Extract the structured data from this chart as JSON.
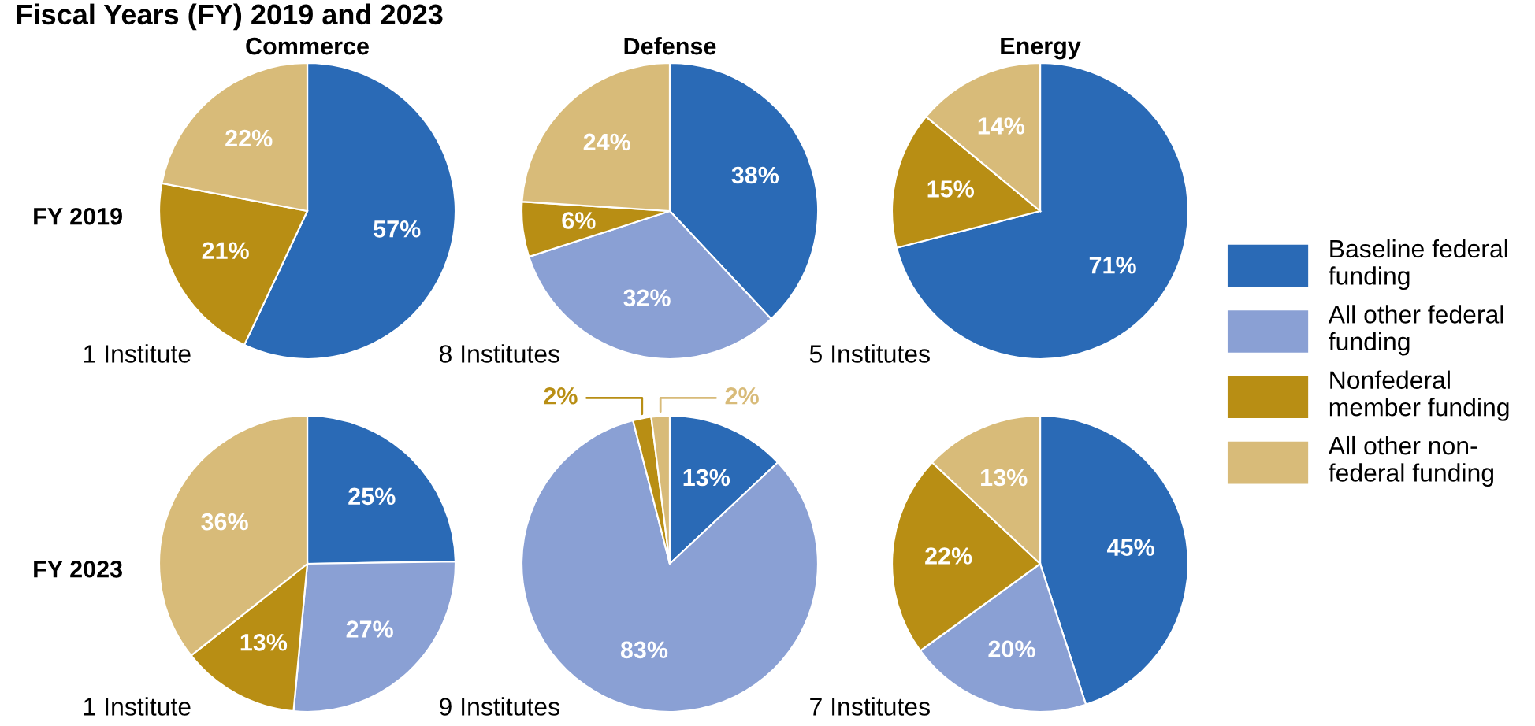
{
  "chart_data": [
    {
      "type": "pie",
      "title": "Commerce",
      "categories": [
        "Baseline federal\nfunding",
        "All other federal\nfunding",
        "Nonfederal\nmember funding",
        "All other non-\nfederal funding"
      ],
      "values": [
        57,
        0,
        21,
        22
      ],
      "colors": [
        "#2a6ab6",
        "#8aa0d4",
        "#b88e14",
        "#d8bb79"
      ],
      "value_labels": [
        "57%",
        null,
        "21%",
        "22%"
      ],
      "annotations": [
        "Fiscal Years (FY) 2019 and 2023",
        "FY 2019",
        "1 Institute"
      ],
      "legend": "right"
    },
    {
      "type": "pie",
      "title": "Defense",
      "values": [
        38,
        32,
        6,
        24
      ],
      "colors": [
        "#2a6ab6",
        "#8aa0d4",
        "#b88e14",
        "#d8bb79"
      ],
      "value_labels": [
        "38%",
        "32%",
        "6%",
        "24%"
      ],
      "annotations": [
        "8 Institutes"
      ]
    },
    {
      "type": "pie",
      "title": "Energy",
      "values": [
        71,
        0,
        15,
        14
      ],
      "colors": [
        "#2a6ab6",
        "#8aa0d4",
        "#b88e14",
        "#d8bb79"
      ],
      "value_labels": [
        "71%",
        null,
        "15%",
        "14%"
      ],
      "annotations": [
        "5 Institutes"
      ]
    },
    {
      "type": "pie",
      "values": [
        25,
        27,
        13,
        36
      ],
      "colors": [
        "#2a6ab6",
        "#8aa0d4",
        "#b88e14",
        "#d8bb79"
      ],
      "value_labels": [
        "25%",
        "27%",
        "13%",
        "36%"
      ],
      "annotations": [
        "FY 2023",
        "1 Institute"
      ]
    },
    {
      "type": "pie",
      "values": [
        13,
        83,
        2,
        2
      ],
      "colors": [
        "#2a6ab6",
        "#8aa0d4",
        "#b88e14",
        "#d8bb79"
      ],
      "value_labels": [
        "13%",
        "83%",
        "2%",
        "2%"
      ],
      "annotations": [
        "9 Institutes"
      ]
    },
    {
      "type": "pie",
      "values": [
        45,
        20,
        22,
        13
      ],
      "colors": [
        "#2a6ab6",
        "#8aa0d4",
        "#b88e14",
        "#d8bb79"
      ],
      "value_labels": [
        "45%",
        "20%",
        "22%",
        "13%"
      ],
      "annotations": [
        "7 Institutes"
      ]
    }
  ]
}
